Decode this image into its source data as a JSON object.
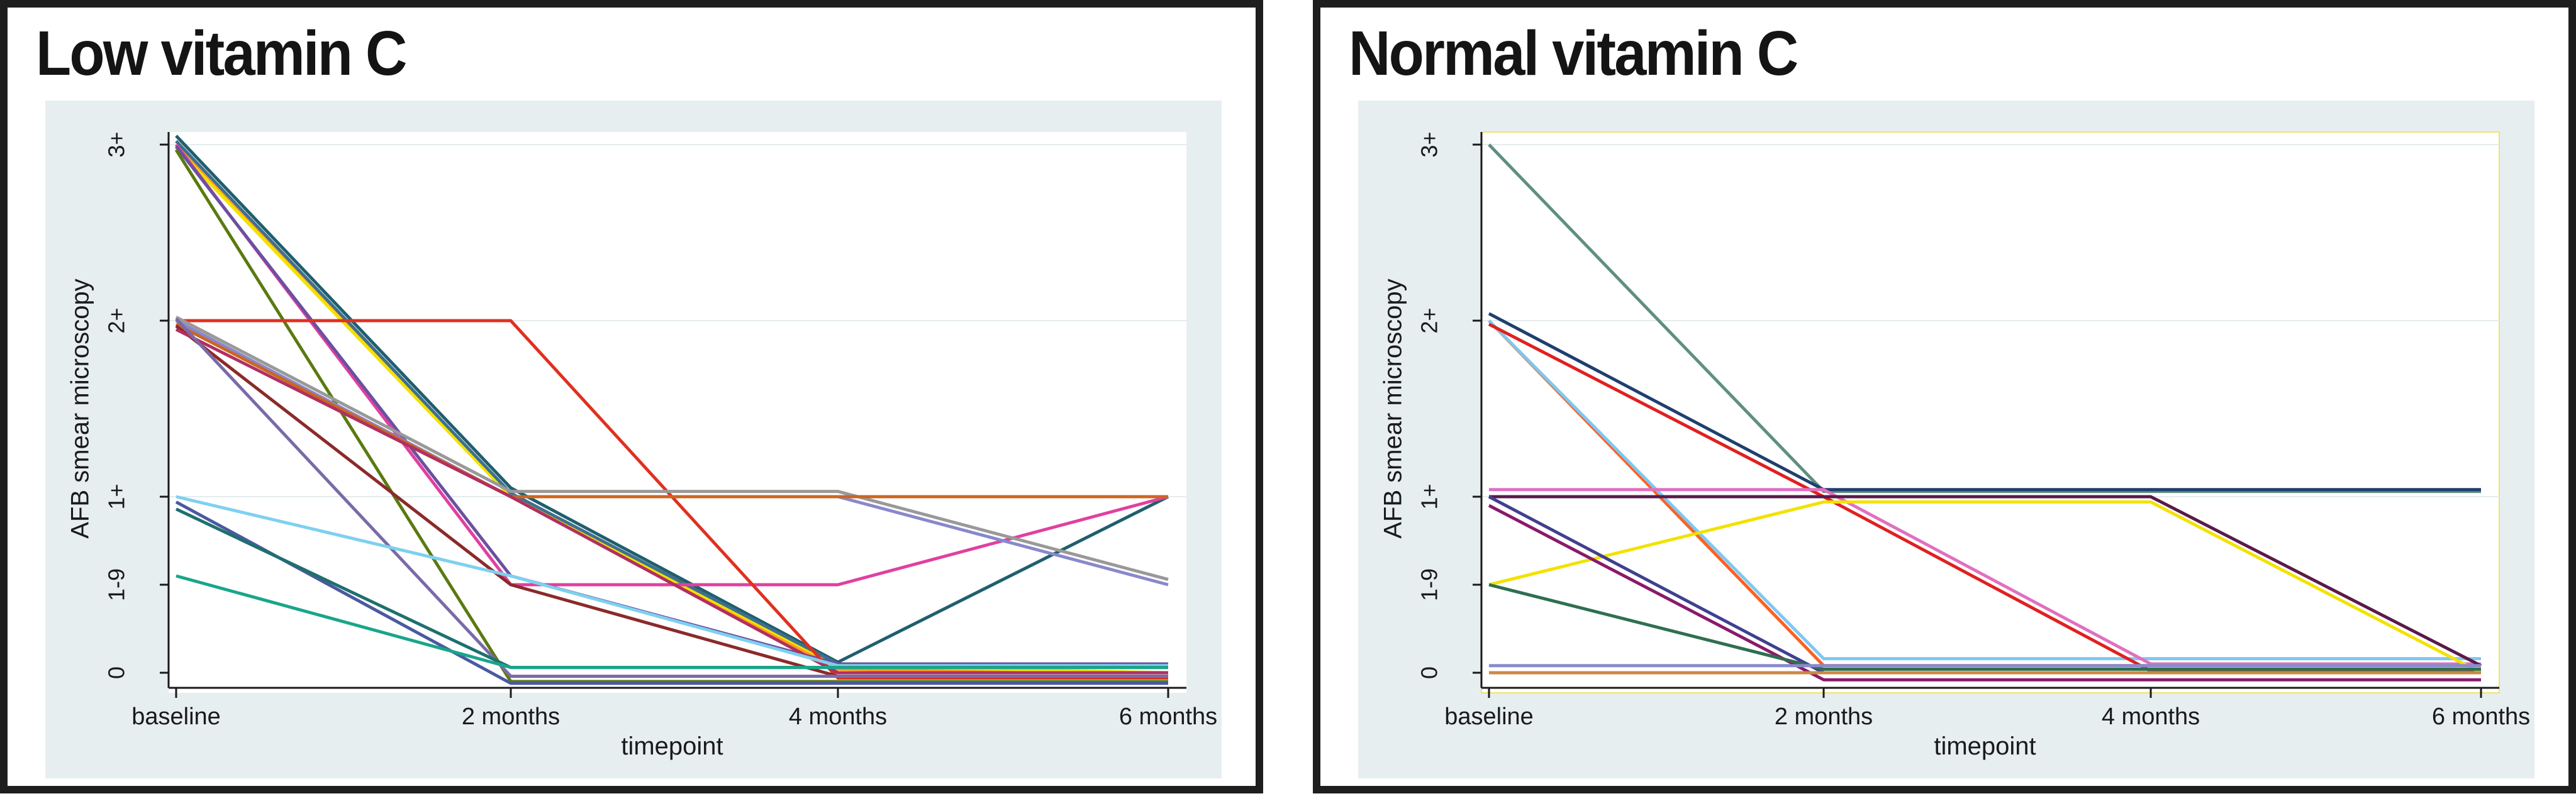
{
  "chart_data": [
    {
      "type": "line",
      "title": "Low vitamin C",
      "xlabel": "timepoint",
      "ylabel": "AFB smear microscopy",
      "categories": [
        "baseline",
        "2 months",
        "4 months",
        "6 months"
      ],
      "y_ticks": [
        {
          "value": 0,
          "label": "0"
        },
        {
          "value": 0.5,
          "label": "1-9"
        },
        {
          "value": 1,
          "label": "1+"
        },
        {
          "value": 2,
          "label": "2+"
        },
        {
          "value": 3,
          "label": "3+"
        }
      ],
      "ylim": [
        0,
        3
      ],
      "gridlines": true,
      "series": [
        {
          "color": "#1f5f6e",
          "values": [
            3.05,
            1.05,
            0.06,
            1.0
          ]
        },
        {
          "color": "#ff9f1c",
          "values": [
            3.0,
            1.0,
            0.02,
            0.0
          ]
        },
        {
          "color": "#f2e200",
          "values": [
            2.98,
            1.0,
            0.04,
            0.0
          ]
        },
        {
          "color": "#3f6f8f",
          "values": [
            3.02,
            1.02,
            0.05,
            0.05
          ]
        },
        {
          "color": "#e040a0",
          "values": [
            3.0,
            0.5,
            0.5,
            1.0
          ]
        },
        {
          "color": "#6a50a0",
          "values": [
            2.99,
            0.55,
            0.05,
            0.05
          ]
        },
        {
          "color": "#5a7a10",
          "values": [
            2.97,
            -0.05,
            -0.05,
            -0.05
          ]
        },
        {
          "color": "#e03020",
          "values": [
            2.0,
            2.0,
            -0.03,
            -0.03
          ]
        },
        {
          "color": "#999999",
          "values": [
            2.02,
            1.03,
            1.03,
            0.53
          ]
        },
        {
          "color": "#8888cc",
          "values": [
            2.0,
            1.0,
            1.0,
            0.5
          ]
        },
        {
          "color": "#cc6622",
          "values": [
            1.98,
            1.0,
            1.0,
            1.0
          ]
        },
        {
          "color": "#8b2a2a",
          "values": [
            1.97,
            0.5,
            -0.02,
            -0.02
          ]
        },
        {
          "color": "#b03060",
          "values": [
            1.95,
            1.0,
            0.0,
            0.0
          ]
        },
        {
          "color": "#7a6aa8",
          "values": [
            2.01,
            -0.02,
            -0.02,
            -0.02
          ]
        },
        {
          "color": "#7ed0f0",
          "values": [
            1.0,
            0.55,
            0.04,
            0.04
          ]
        },
        {
          "color": "#4a5aa0",
          "values": [
            0.97,
            -0.06,
            -0.06,
            -0.06
          ]
        },
        {
          "color": "#1f6f6f",
          "values": [
            0.93,
            0.03,
            0.03,
            0.03
          ]
        },
        {
          "color": "#1aa58a",
          "values": [
            0.55,
            0.03,
            0.03,
            0.03
          ]
        }
      ]
    },
    {
      "type": "line",
      "title": "Normal vitamin C",
      "xlabel": "timepoint",
      "ylabel": "AFB smear microscopy",
      "categories": [
        "baseline",
        "2 months",
        "4 months",
        "6 months"
      ],
      "y_ticks": [
        {
          "value": 0,
          "label": "0"
        },
        {
          "value": 0.5,
          "label": "1-9"
        },
        {
          "value": 1,
          "label": "1+"
        },
        {
          "value": 2,
          "label": "2+"
        },
        {
          "value": 3,
          "label": "3+"
        }
      ],
      "ylim": [
        0,
        3
      ],
      "gridlines": true,
      "series": [
        {
          "color": "#5f8f80",
          "values": [
            3.0,
            1.03,
            1.03,
            1.03
          ]
        },
        {
          "color": "#1f3f6e",
          "values": [
            2.04,
            1.04,
            1.04,
            1.04
          ]
        },
        {
          "color": "#ff6020",
          "values": [
            2.0,
            0.04,
            0.04,
            0.04
          ]
        },
        {
          "color": "#7ec8f0",
          "values": [
            2.0,
            0.08,
            0.08,
            0.08
          ]
        },
        {
          "color": "#e02020",
          "values": [
            1.98,
            1.0,
            0.01,
            0.01
          ]
        },
        {
          "color": "#e070c0",
          "values": [
            1.04,
            1.04,
            0.05,
            0.05
          ]
        },
        {
          "color": "#5a1a4a",
          "values": [
            1.0,
            1.0,
            1.0,
            0.04
          ]
        },
        {
          "color": "#f2e200",
          "values": [
            0.5,
            0.97,
            0.97,
            0.0
          ]
        },
        {
          "color": "#404090",
          "values": [
            1.0,
            0.0,
            0.0,
            0.0
          ]
        },
        {
          "color": "#8a1a6a",
          "values": [
            0.95,
            -0.04,
            -0.04,
            -0.04
          ]
        },
        {
          "color": "#2f6f4f",
          "values": [
            0.5,
            0.02,
            0.02,
            0.02
          ]
        },
        {
          "color": "#8a8acc",
          "values": [
            0.04,
            0.04,
            0.04,
            0.04
          ]
        },
        {
          "color": "#cc8844",
          "values": [
            0.0,
            0.0,
            0.0,
            0.0
          ]
        }
      ]
    }
  ]
}
